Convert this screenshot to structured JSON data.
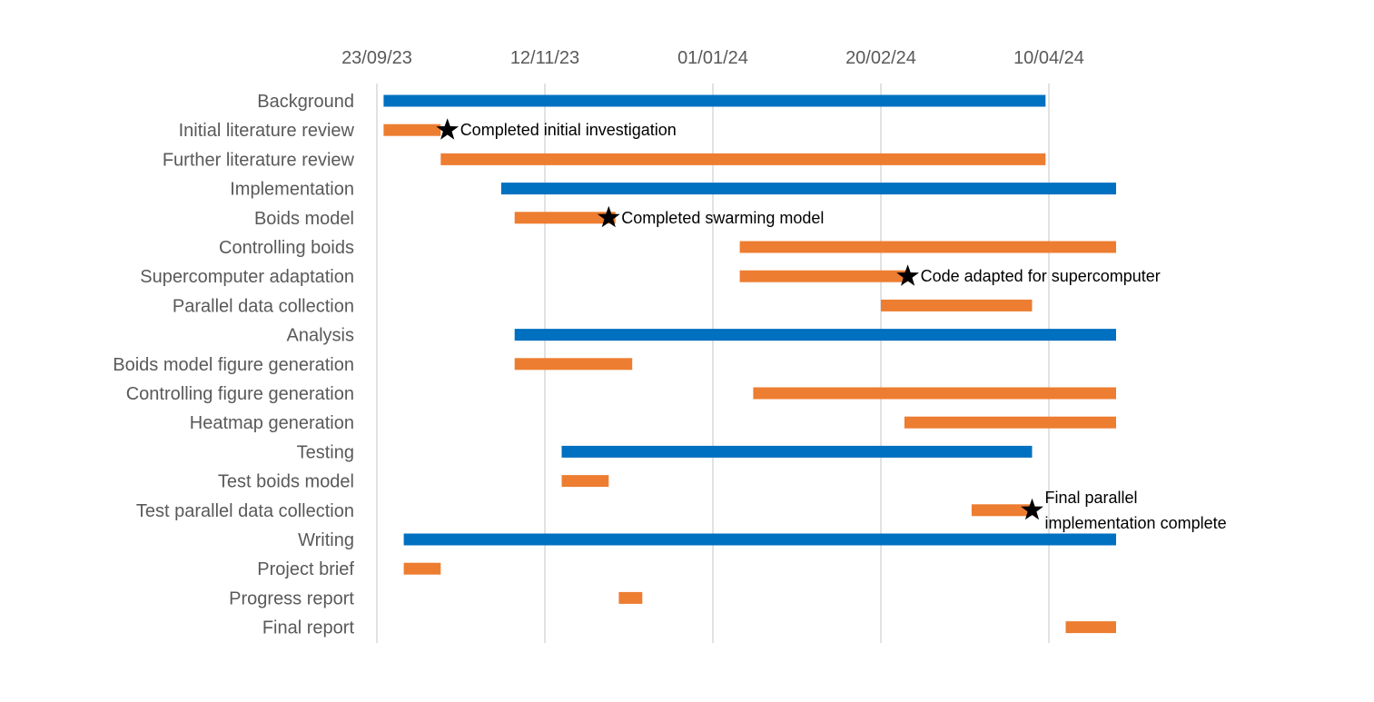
{
  "chart_data": {
    "type": "gantt",
    "x_axis": {
      "min": "2023-09-23",
      "max": "2024-04-30",
      "ticks": [
        {
          "date": "2023-09-23",
          "label": "23/09/23"
        },
        {
          "date": "2023-11-12",
          "label": "12/11/23"
        },
        {
          "date": "2024-01-01",
          "label": "01/01/24"
        },
        {
          "date": "2024-02-20",
          "label": "20/02/24"
        },
        {
          "date": "2024-04-10",
          "label": "10/04/24"
        }
      ],
      "grid": true,
      "position": "top"
    },
    "colors": {
      "category": "#0070c0",
      "task": "#ed7d31",
      "milestone": "#000000"
    },
    "tasks": [
      {
        "label": "Background",
        "kind": "category",
        "start": "2023-09-25",
        "end": "2024-04-09"
      },
      {
        "label": "Initial literature review",
        "kind": "task",
        "start": "2023-09-25",
        "end": "2023-10-12"
      },
      {
        "label": "Further literature review",
        "kind": "task",
        "start": "2023-10-12",
        "end": "2024-04-09"
      },
      {
        "label": "Implementation",
        "kind": "category",
        "start": "2023-10-30",
        "end": "2024-04-30"
      },
      {
        "label": "Boids model",
        "kind": "task",
        "start": "2023-11-03",
        "end": "2023-12-03"
      },
      {
        "label": "Controlling boids",
        "kind": "task",
        "start": "2024-01-09",
        "end": "2024-04-30"
      },
      {
        "label": "Supercomputer adaptation",
        "kind": "task",
        "start": "2024-01-09",
        "end": "2024-02-28"
      },
      {
        "label": "Parallel data collection",
        "kind": "task",
        "start": "2024-02-20",
        "end": "2024-04-05"
      },
      {
        "label": "Analysis",
        "kind": "category",
        "start": "2023-11-03",
        "end": "2024-04-30"
      },
      {
        "label": "Boids model figure generation",
        "kind": "task",
        "start": "2023-11-03",
        "end": "2023-12-08"
      },
      {
        "label": "Controlling figure generation",
        "kind": "task",
        "start": "2024-01-13",
        "end": "2024-04-30"
      },
      {
        "label": "Heatmap generation",
        "kind": "task",
        "start": "2024-02-27",
        "end": "2024-04-30"
      },
      {
        "label": "Testing",
        "kind": "category",
        "start": "2023-11-17",
        "end": "2024-04-05"
      },
      {
        "label": "Test boids model",
        "kind": "task",
        "start": "2023-11-17",
        "end": "2023-12-01"
      },
      {
        "label": "Test parallel data collection",
        "kind": "task",
        "start": "2024-03-18",
        "end": "2024-04-05"
      },
      {
        "label": "Writing",
        "kind": "category",
        "start": "2023-10-01",
        "end": "2024-04-30"
      },
      {
        "label": "Project brief",
        "kind": "task",
        "start": "2023-10-01",
        "end": "2023-10-12"
      },
      {
        "label": "Progress report",
        "kind": "task",
        "start": "2023-12-04",
        "end": "2023-12-11"
      },
      {
        "label": "Final report",
        "kind": "task",
        "start": "2024-04-15",
        "end": "2024-04-30"
      }
    ],
    "milestones": [
      {
        "row": 1,
        "date": "2023-10-14",
        "label_lines": [
          "Completed initial investigation"
        ]
      },
      {
        "row": 4,
        "date": "2023-12-01",
        "label_lines": [
          "Completed swarming model"
        ]
      },
      {
        "row": 6,
        "date": "2024-02-28",
        "label_lines": [
          "Code adapted for supercomputer"
        ]
      },
      {
        "row": 14,
        "date": "2024-04-05",
        "label_lines": [
          "Final parallel",
          "implementation complete"
        ]
      }
    ]
  }
}
